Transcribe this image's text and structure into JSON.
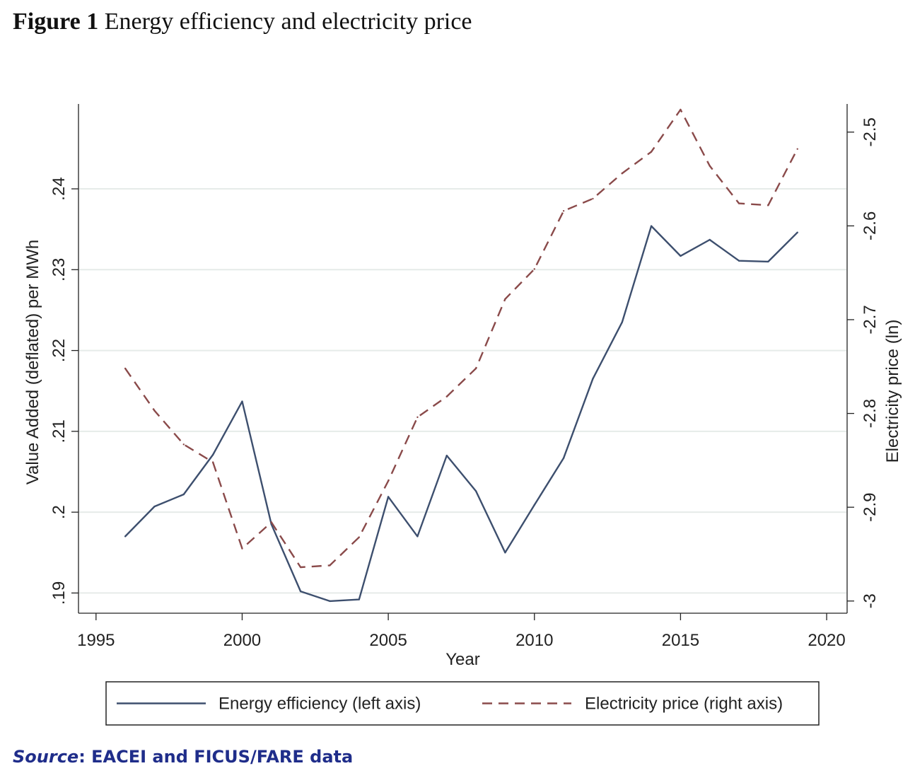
{
  "figure": {
    "label": "Figure 1",
    "title": "Energy efficiency and electricity price"
  },
  "source": {
    "label": "Source",
    "text": ": EACEI and FICUS/FARE data",
    "color": "#1f2d8a"
  },
  "chart_data": {
    "type": "line",
    "xlabel": "Year",
    "ylabel_left": "Value Added (deflated) per MWh",
    "ylabel_right": "Electricity price (ln)",
    "xlim": [
      1994.4,
      2020.7
    ],
    "ylim_left": [
      0.1875,
      0.2505
    ],
    "ylim_right": [
      -3.013,
      -2.47
    ],
    "x_ticks": [
      1995,
      2000,
      2005,
      2010,
      2015,
      2020
    ],
    "x_tick_labels": [
      "1995",
      "2000",
      "2005",
      "2010",
      "2015",
      "2020"
    ],
    "y_left_ticks": [
      0.19,
      0.2,
      0.21,
      0.22,
      0.23,
      0.24
    ],
    "y_left_tick_labels": [
      ".19",
      ".2",
      ".21",
      ".22",
      ".23",
      ".24"
    ],
    "y_right_ticks": [
      -3,
      -2.9,
      -2.8,
      -2.7,
      -2.6,
      -2.5
    ],
    "y_right_tick_labels": [
      "-3",
      "-2.9",
      "-2.8",
      "-2.7",
      "-2.6",
      "-2.5"
    ],
    "grid": true,
    "legend_position": "bottom",
    "series": [
      {
        "name": "Energy efficiency (left axis)",
        "axis": "left",
        "style": "solid",
        "color": "#3d4f6e",
        "x": [
          1996,
          1997,
          1998,
          1999,
          2000,
          2001,
          2002,
          2003,
          2004,
          2005,
          2006,
          2007,
          2008,
          2009,
          2010,
          2011,
          2012,
          2013,
          2014,
          2015,
          2016,
          2017,
          2018,
          2019
        ],
        "values": [
          0.197,
          0.2007,
          0.2022,
          0.2071,
          0.2137,
          0.1985,
          0.1902,
          0.189,
          0.1892,
          0.2019,
          0.197,
          0.207,
          0.2026,
          0.195,
          0.2009,
          0.2067,
          0.2165,
          0.2235,
          0.2354,
          0.2317,
          0.2337,
          0.2311,
          0.231,
          0.2346
        ]
      },
      {
        "name": "Electricity price (right axis)",
        "axis": "right",
        "style": "dashed",
        "color": "#8a4a4a",
        "x": [
          1996,
          1997,
          1998,
          1999,
          2000,
          2001,
          2002,
          2003,
          2004,
          2005,
          2006,
          2007,
          2008,
          2009,
          2010,
          2011,
          2012,
          2013,
          2014,
          2015,
          2016,
          2017,
          2018,
          2019
        ],
        "values": [
          -2.752,
          -2.797,
          -2.833,
          -2.852,
          -2.944,
          -2.916,
          -2.964,
          -2.962,
          -2.932,
          -2.872,
          -2.804,
          -2.782,
          -2.752,
          -2.678,
          -2.646,
          -2.584,
          -2.571,
          -2.544,
          -2.521,
          -2.476,
          -2.536,
          -2.576,
          -2.578,
          -2.518
        ]
      }
    ]
  }
}
